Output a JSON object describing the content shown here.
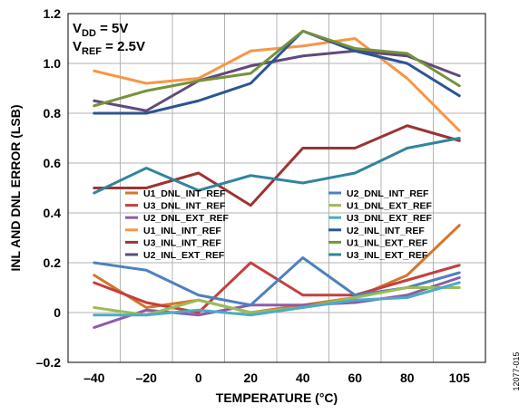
{
  "chart_data": {
    "type": "line",
    "xlabel": "TEMPERATURE (°C)",
    "ylabel": "INL AND DNL ERROR (LSB)",
    "x": [
      -40,
      -20,
      0,
      20,
      40,
      60,
      80,
      105
    ],
    "x_tick_labels": [
      "–40",
      "–20",
      "0",
      "20",
      "40",
      "60",
      "80",
      "105"
    ],
    "y_ticks": [
      -0.2,
      0,
      0.2,
      0.4,
      0.6,
      0.8,
      1.0,
      1.2
    ],
    "y_tick_labels": [
      "–0.2",
      "0",
      "0.2",
      "0.4",
      "0.6",
      "0.8",
      "1.0",
      "1.2"
    ],
    "ylim": [
      -0.2,
      1.2
    ],
    "grid": true,
    "legend_placement": "center-bottom (two columns)",
    "annotations": {
      "vdd": {
        "base": "V",
        "sub": "DD",
        "rest": " = 5V"
      },
      "vref": {
        "base": "V",
        "sub": "REF",
        "rest": " = 2.5V"
      }
    },
    "figure_id": "12077-015",
    "series": [
      {
        "name": "U1_DNL_INT_REF",
        "color": "#d2772d",
        "values": [
          0.15,
          0.02,
          0.05,
          0.0,
          0.03,
          0.06,
          0.15,
          0.35
        ]
      },
      {
        "name": "U3_DNL_INT_REF",
        "color": "#c4403c",
        "values": [
          0.12,
          0.04,
          0.0,
          0.2,
          0.07,
          0.07,
          0.13,
          0.19
        ]
      },
      {
        "name": "U2_DNL_EXT_REF",
        "color": "#8f5aab",
        "values": [
          -0.06,
          0.01,
          -0.01,
          0.03,
          0.03,
          0.04,
          0.07,
          0.14
        ]
      },
      {
        "name": "U1_INL_INT_REF",
        "color": "#f79646",
        "values": [
          0.97,
          0.92,
          0.94,
          1.05,
          1.07,
          1.1,
          0.94,
          0.73
        ]
      },
      {
        "name": "U3_INL_INT_REF",
        "color": "#9b3434",
        "values": [
          0.5,
          0.5,
          0.56,
          0.43,
          0.66,
          0.66,
          0.75,
          0.69
        ]
      },
      {
        "name": "U2_INL_EXT_REF",
        "color": "#604a7b",
        "values": [
          0.85,
          0.81,
          0.93,
          0.99,
          1.03,
          1.05,
          1.03,
          0.95
        ]
      },
      {
        "name": "U2_DNL_INT_REF",
        "color": "#4f81bd",
        "values": [
          0.2,
          0.17,
          0.07,
          0.03,
          0.22,
          0.07,
          0.1,
          0.16
        ]
      },
      {
        "name": "U1_DNL_EXT_REF",
        "color": "#9bbb59",
        "values": [
          0.02,
          -0.01,
          0.05,
          0.0,
          0.02,
          0.06,
          0.1,
          0.1
        ]
      },
      {
        "name": "U3_DNL_EXT_REF",
        "color": "#4bacc6",
        "values": [
          -0.01,
          -0.01,
          0.01,
          -0.01,
          0.02,
          0.05,
          0.06,
          0.12
        ]
      },
      {
        "name": "U2_INL_INT_REF",
        "color": "#2c5494",
        "values": [
          0.8,
          0.8,
          0.85,
          0.92,
          1.13,
          1.05,
          1.0,
          0.87
        ]
      },
      {
        "name": "U1_INL_EXT_REF",
        "color": "#76923c",
        "values": [
          0.83,
          0.89,
          0.93,
          0.96,
          1.13,
          1.06,
          1.04,
          0.91
        ]
      },
      {
        "name": "U3_INL_EXT_REF",
        "color": "#31859c",
        "values": [
          0.48,
          0.58,
          0.49,
          0.55,
          0.52,
          0.56,
          0.66,
          0.7
        ]
      }
    ]
  }
}
